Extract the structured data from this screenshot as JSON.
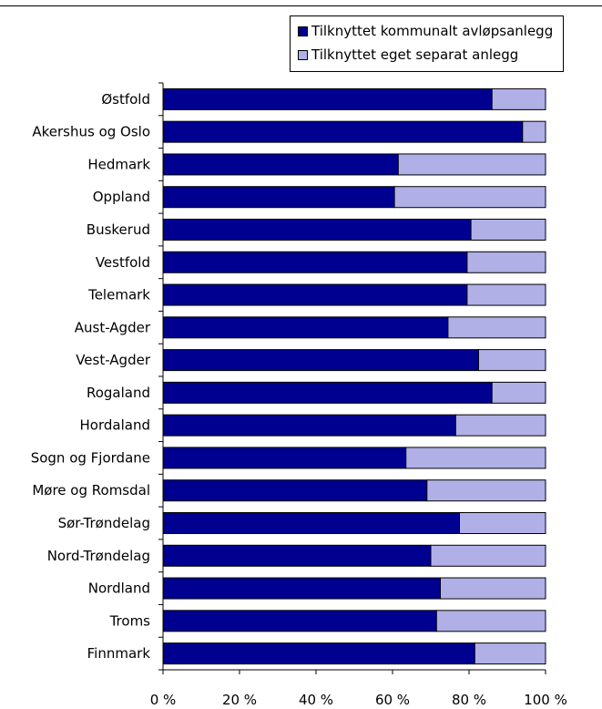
{
  "colors": {
    "municipal": "#000090",
    "separate": "#b0b0e6"
  },
  "chart_data": {
    "type": "bar",
    "orientation": "horizontal",
    "stacked": true,
    "xlim": [
      0,
      100
    ],
    "x_ticks": [
      "0 %",
      "20 %",
      "40 %",
      "60 %",
      "80 %",
      "100 %"
    ],
    "legend_position": "top-right",
    "grid": false,
    "categories": [
      "Østfold",
      "Akershus og Oslo",
      "Hedmark",
      "Oppland",
      "Buskerud",
      "Vestfold",
      "Telemark",
      "Aust-Agder",
      "Vest-Agder",
      "Rogaland",
      "Hordaland",
      "Sogn og Fjordane",
      "Møre og Romsdal",
      "Sør-Trøndelag",
      "Nord-Trøndelag",
      "Nordland",
      "Troms",
      "Finnmark"
    ],
    "series": [
      {
        "name": "Tilknyttet kommunalt avløpsanlegg",
        "values": [
          86,
          94,
          61.5,
          60.5,
          80.5,
          79.5,
          79.5,
          74.5,
          82.5,
          86,
          76.5,
          63.5,
          69,
          77.5,
          70,
          72.5,
          71.5,
          81.5
        ]
      },
      {
        "name": "Tilknyttet eget separat anlegg",
        "values": [
          14,
          6,
          38.5,
          39.5,
          19.5,
          20.5,
          20.5,
          25.5,
          17.5,
          14,
          23.5,
          36.5,
          31,
          22.5,
          30,
          27.5,
          28.5,
          18.5
        ]
      }
    ]
  }
}
